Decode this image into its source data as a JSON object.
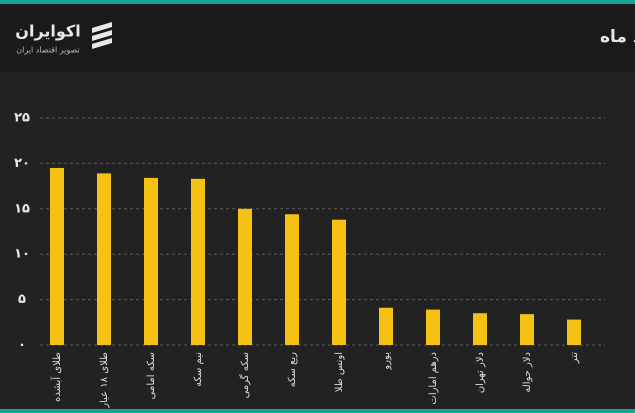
{
  "brand": {
    "name": "اکوایران",
    "tagline": "تصویر اقتصاد ایران"
  },
  "chart_data": {
    "type": "bar",
    "title": "بازدهی بازارها در مرداد ماه",
    "categories": [
      "طلای آبشده",
      "طلای ۱۸ عیار",
      "سکه امامی",
      "نیم سکه",
      "سکه گرمی",
      "ربع سکه",
      "اونس طلا",
      "یورو",
      "درهم امارات",
      "دلار تهران",
      "دلار حواله",
      "تتر"
    ],
    "values": [
      19.5,
      18.9,
      18.4,
      18.3,
      15.0,
      14.4,
      13.8,
      4.1,
      3.9,
      3.5,
      3.4,
      2.8
    ],
    "color": "#f5c214",
    "ylim": [
      0,
      25
    ],
    "yticks": [
      {
        "value": 0,
        "label": "۰"
      },
      {
        "value": 5,
        "label": "۵"
      },
      {
        "value": 10,
        "label": "۱۰"
      },
      {
        "value": 15,
        "label": "۱۵"
      },
      {
        "value": 20,
        "label": "۲۰"
      },
      {
        "value": 25,
        "label": "۲۵"
      }
    ],
    "grid": true
  }
}
